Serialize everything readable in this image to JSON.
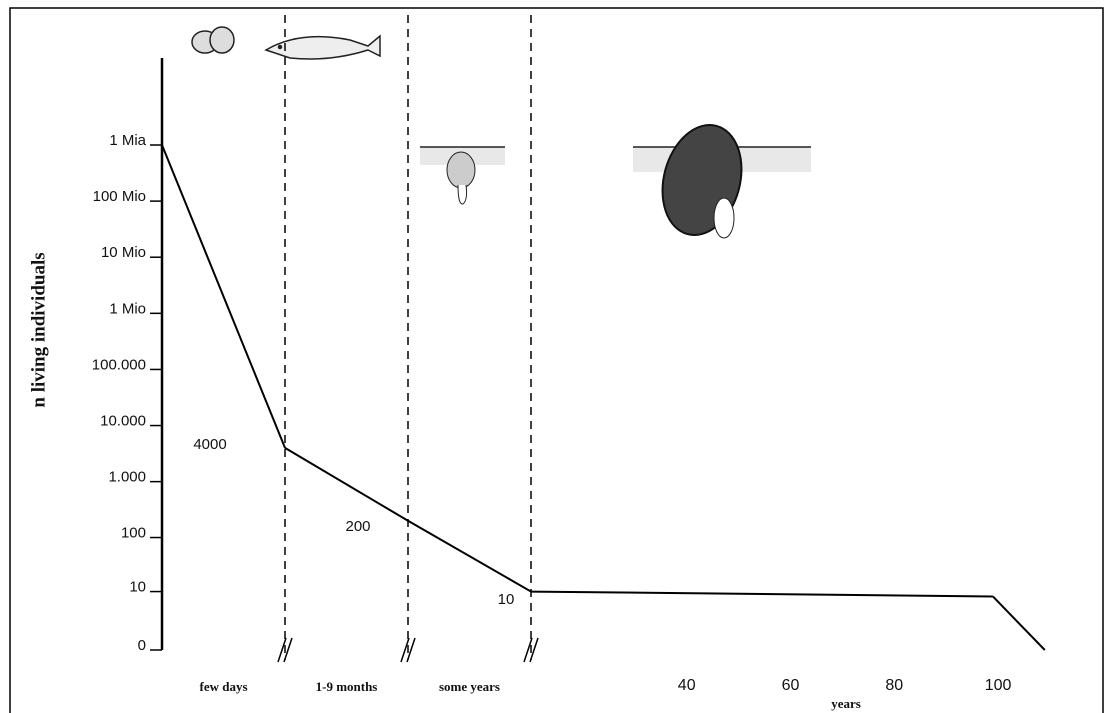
{
  "chart_data": {
    "type": "line",
    "y_label": "n living individuals",
    "x_label": "years",
    "yscale": "log",
    "ylim": [
      0,
      1000000000
    ],
    "yticks": [
      0,
      10,
      100,
      {
        "value": 1000,
        "label": "1.000"
      },
      {
        "value": 10000,
        "label": "10.000"
      },
      {
        "value": 100000,
        "label": "100.000"
      },
      {
        "value": 1000000,
        "label": "1 Mio"
      },
      {
        "value": 10000000,
        "label": "10 Mio"
      },
      {
        "value": 100000000,
        "label": "100 Mio"
      },
      {
        "value": 1000000000,
        "label": "1 Mia"
      }
    ],
    "categories": [
      "few days",
      "1-9 months",
      "some years"
    ],
    "values": [
      1000000000,
      4000,
      200
    ],
    "years": {
      "x": [
        10,
        99,
        109
      ],
      "values": [
        10,
        8,
        0
      ]
    },
    "xlim": [
      10,
      110
    ],
    "xticks": [
      40,
      60,
      80,
      100
    ],
    "color": "#000000"
  }
}
